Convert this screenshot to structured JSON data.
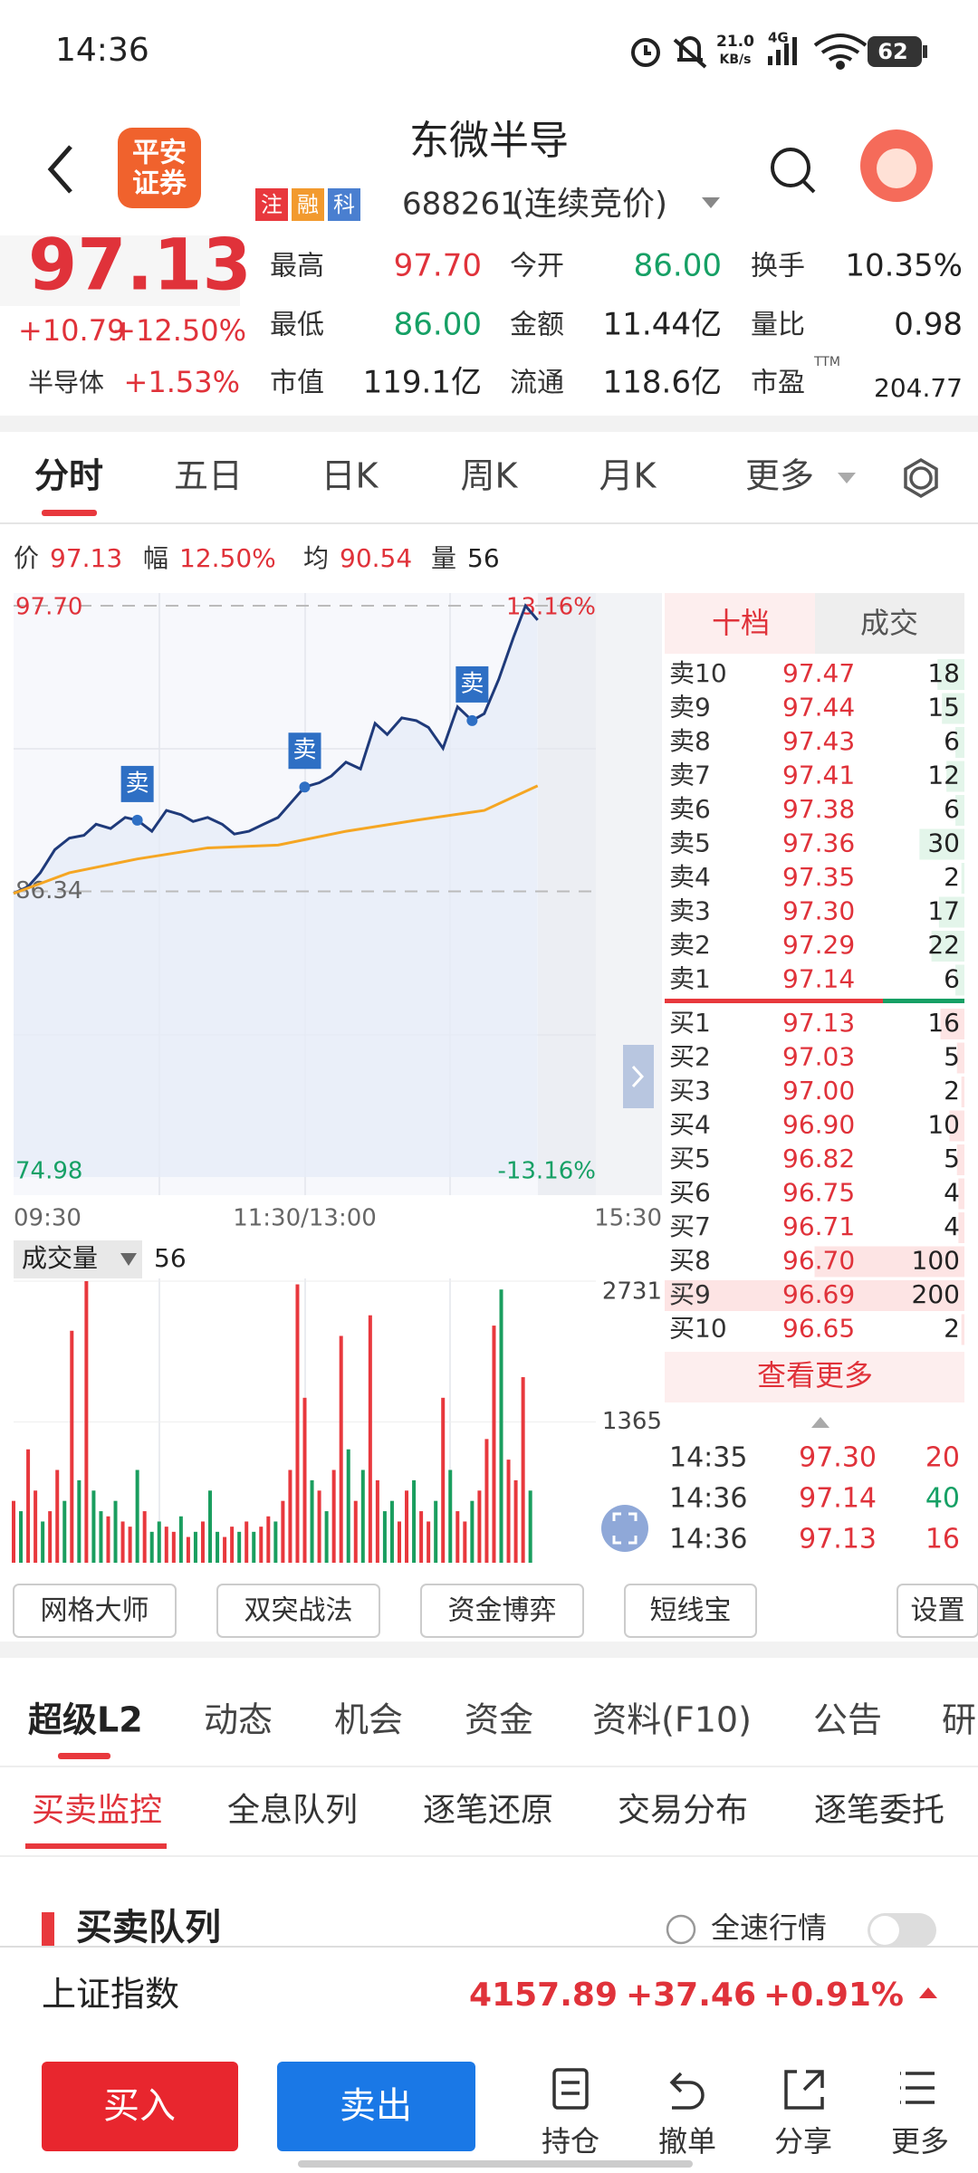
{
  "status": {
    "time": "14:36",
    "speed": "21.0",
    "speed_unit": "KB/s",
    "network": "4G",
    "battery": "62"
  },
  "header": {
    "logo_line1": "平安",
    "logo_line2": "证券",
    "title": "东微半导",
    "tags": [
      {
        "text": "注",
        "color": "#e8383d"
      },
      {
        "text": "融",
        "color": "#f29a2e"
      },
      {
        "text": "科",
        "color": "#4a7fd0"
      }
    ],
    "code": "688261",
    "status": "(连续竞价)"
  },
  "quote": {
    "price": "97.13",
    "change": "+10.79",
    "change_pct": "+12.50%",
    "sector": "半导体",
    "sector_pct": "+1.53%",
    "stats": [
      {
        "label": "最高",
        "value": "97.70",
        "color": "#e0323a"
      },
      {
        "label": "今开",
        "value": "86.00",
        "color": "#16a065"
      },
      {
        "label": "换手",
        "value": "10.35%",
        "color": "#222222"
      },
      {
        "label": "最低",
        "value": "86.00",
        "color": "#16a065"
      },
      {
        "label": "金额",
        "value": "11.44亿",
        "color": "#222222"
      },
      {
        "label": "量比",
        "value": "0.98",
        "color": "#222222"
      },
      {
        "label": "市值",
        "value": "119.1亿",
        "color": "#222222"
      },
      {
        "label": "流通",
        "value": "118.6亿",
        "color": "#222222"
      },
      {
        "label": "市盈",
        "value": "204.77",
        "color": "#222222",
        "superscript": "TTM"
      }
    ]
  },
  "tabs": [
    "分时",
    "五日",
    "日K",
    "周K",
    "月K",
    "更多"
  ],
  "info_row": [
    {
      "label": "价",
      "value": "97.13",
      "color": "#e0323a"
    },
    {
      "label": "幅",
      "value": "12.50%",
      "color": "#e0323a"
    },
    {
      "label": "均",
      "value": "90.54",
      "color": "#e0323a"
    },
    {
      "label": "量",
      "value": "56",
      "color": "#222222"
    }
  ],
  "intraday_chart": {
    "type": "line",
    "xlim": [
      0,
      240
    ],
    "ylim": [
      74.98,
      97.7
    ],
    "yticks": [
      {
        "value": 97.7,
        "label": "97.70"
      },
      {
        "value": 86.34,
        "label": "86.34"
      },
      {
        "value": 74.98,
        "label": "74.98"
      }
    ],
    "pct_top": "13.16%",
    "pct_bottom": "-13.16%",
    "xticks": [
      {
        "value": 0,
        "label": "09:30"
      },
      {
        "value": 120,
        "label": "11:30/13:00"
      },
      {
        "value": 240,
        "label": "15:30"
      }
    ],
    "series": [
      {
        "color": "#1f3a7a",
        "x": [
          0,
          6,
          11,
          17,
          23,
          29,
          34,
          40,
          46,
          51,
          57,
          63,
          69,
          74,
          80,
          86,
          91,
          97,
          103,
          109,
          114,
          120,
          126,
          131,
          137,
          143,
          149,
          154,
          160,
          166,
          171,
          177,
          183,
          189,
          194,
          200,
          206,
          211,
          216
        ],
        "values": [
          86.26,
          86.53,
          87.08,
          88.0,
          88.46,
          88.57,
          89.01,
          88.84,
          89.28,
          89.17,
          88.73,
          89.56,
          89.39,
          89.12,
          89.28,
          89.01,
          88.62,
          88.73,
          89.01,
          89.28,
          89.83,
          90.49,
          90.66,
          90.93,
          91.48,
          91.21,
          93.02,
          92.58,
          93.24,
          93.13,
          92.86,
          92.03,
          93.68,
          93.13,
          93.41,
          94.78,
          96.43,
          97.7,
          97.13
        ]
      },
      {
        "color": "#f5a623",
        "x": [
          0,
          23,
          51,
          80,
          109,
          137,
          166,
          194,
          216
        ],
        "values": [
          86.26,
          87.08,
          87.63,
          88.07,
          88.18,
          88.73,
          89.17,
          89.56,
          90.54
        ]
      }
    ],
    "markers": [
      {
        "label": "卖",
        "x": 51
      },
      {
        "label": "卖",
        "x": 120
      },
      {
        "label": "卖",
        "x": 189
      }
    ]
  },
  "volume_chart": {
    "type": "bar",
    "label": "成交量",
    "current": "56",
    "xlim": [
      0,
      240
    ],
    "ylim": [
      0,
      2731
    ],
    "yticks": [
      2731,
      1365
    ],
    "up_color": "#e8383d",
    "down_color": "#1a9e5f",
    "x": [
      0,
      3,
      6,
      9,
      12,
      15,
      18,
      21,
      24,
      27,
      30,
      33,
      36,
      39,
      42,
      45,
      48,
      51,
      54,
      57,
      60,
      63,
      66,
      69,
      72,
      75,
      78,
      81,
      84,
      87,
      90,
      93,
      96,
      99,
      102,
      105,
      108,
      111,
      114,
      117,
      120,
      123,
      126,
      129,
      132,
      135,
      138,
      141,
      144,
      147,
      150,
      153,
      156,
      159,
      162,
      165,
      168,
      171,
      174,
      177,
      180,
      183,
      186,
      189,
      192,
      195,
      198,
      201,
      204,
      207,
      210,
      213
    ],
    "values": [
      600,
      500,
      1100,
      700,
      400,
      500,
      900,
      600,
      2250,
      800,
      2731,
      700,
      500,
      450,
      600,
      400,
      350,
      900,
      500,
      300,
      400,
      350,
      300,
      450,
      250,
      300,
      400,
      700,
      300,
      250,
      350,
      300,
      400,
      300,
      350,
      450,
      400,
      600,
      900,
      2700,
      1600,
      800,
      700,
      500,
      900,
      2200,
      1100,
      600,
      900,
      2400,
      800,
      500,
      600,
      400,
      700,
      800,
      500,
      400,
      600,
      1600,
      900,
      500,
      400,
      600,
      700,
      1200,
      2300,
      2650,
      1000,
      800,
      1800,
      700
    ],
    "rising": [
      true,
      false,
      true,
      true,
      false,
      true,
      true,
      false,
      true,
      false,
      true,
      false,
      false,
      true,
      false,
      true,
      true,
      false,
      true,
      false,
      false,
      true,
      true,
      false,
      true,
      false,
      true,
      false,
      false,
      true,
      true,
      false,
      true,
      false,
      true,
      true,
      false,
      true,
      true,
      true,
      true,
      false,
      true,
      false,
      true,
      true,
      false,
      true,
      false,
      true,
      true,
      false,
      false,
      true,
      true,
      false,
      true,
      true,
      false,
      true,
      false,
      true,
      true,
      false,
      true,
      true,
      true,
      false,
      true,
      true,
      true,
      false
    ]
  },
  "order_book": {
    "tabs": [
      "十档",
      "成交"
    ],
    "asks": [
      {
        "label": "卖10",
        "price": "97.47",
        "volume": 18
      },
      {
        "label": "卖9",
        "price": "97.44",
        "volume": 15
      },
      {
        "label": "卖8",
        "price": "97.43",
        "volume": 6
      },
      {
        "label": "卖7",
        "price": "97.41",
        "volume": 12
      },
      {
        "label": "卖6",
        "price": "97.38",
        "volume": 6
      },
      {
        "label": "卖5",
        "price": "97.36",
        "volume": 30
      },
      {
        "label": "卖4",
        "price": "97.35",
        "volume": 2
      },
      {
        "label": "卖3",
        "price": "97.30",
        "volume": 17
      },
      {
        "label": "卖2",
        "price": "97.29",
        "volume": 22
      },
      {
        "label": "卖1",
        "price": "97.14",
        "volume": 6
      }
    ],
    "bids": [
      {
        "label": "买1",
        "price": "97.13",
        "volume": 16
      },
      {
        "label": "买2",
        "price": "97.03",
        "volume": 5
      },
      {
        "label": "买3",
        "price": "97.00",
        "volume": 2
      },
      {
        "label": "买4",
        "price": "96.90",
        "volume": 10
      },
      {
        "label": "买5",
        "price": "96.82",
        "volume": 5
      },
      {
        "label": "买6",
        "price": "96.75",
        "volume": 4
      },
      {
        "label": "买7",
        "price": "96.71",
        "volume": 4
      },
      {
        "label": "买8",
        "price": "96.70",
        "volume": 100
      },
      {
        "label": "买9",
        "price": "96.69",
        "volume": 200
      },
      {
        "label": "买10",
        "price": "96.65",
        "volume": 2
      }
    ],
    "more": "查看更多",
    "trades": [
      {
        "time": "14:35",
        "price": "97.30",
        "volume": "20",
        "color": "#e0323a"
      },
      {
        "time": "14:36",
        "price": "97.14",
        "volume": "40",
        "color": "#16a065"
      },
      {
        "time": "14:36",
        "price": "97.13",
        "volume": "16",
        "color": "#e0323a"
      }
    ]
  },
  "tools": [
    "网格大师",
    "双突战法",
    "资金博弈",
    "短线宝",
    "设置"
  ],
  "section_tabs": [
    "超级L2",
    "动态",
    "机会",
    "资金",
    "资料(F10)",
    "公告",
    "研"
  ],
  "sub_tabs": [
    "买卖监控",
    "全息队列",
    "逐笔还原",
    "交易分布",
    "逐笔委托"
  ],
  "section": {
    "title": "买卖队列",
    "toggle_label": "全速行情"
  },
  "index_bar": {
    "name": "上证指数",
    "value": "4157.89",
    "change": "+37.46",
    "change_pct": "+0.91%"
  },
  "bottom": {
    "buy": "买入",
    "sell": "卖出",
    "actions": [
      "持仓",
      "撤单",
      "分享",
      "更多"
    ]
  }
}
